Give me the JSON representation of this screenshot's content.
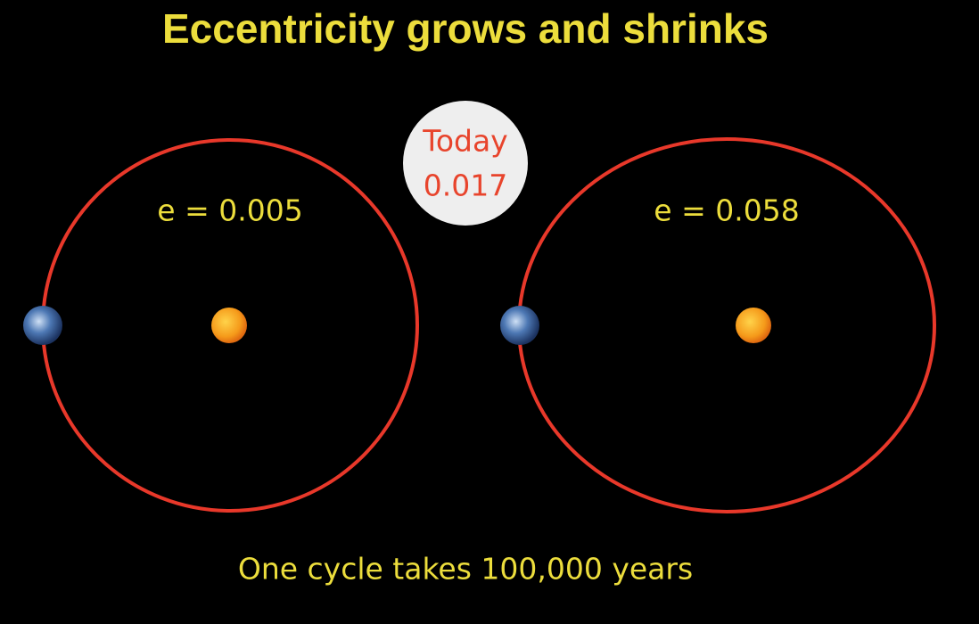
{
  "title": "Eccentricity grows and shrinks",
  "badge": {
    "line1": "Today",
    "line2": "0.017"
  },
  "orbits": [
    {
      "label": "e = 0.005"
    },
    {
      "label": "e = 0.058"
    }
  ],
  "footer": "One cycle takes 100,000 years"
}
